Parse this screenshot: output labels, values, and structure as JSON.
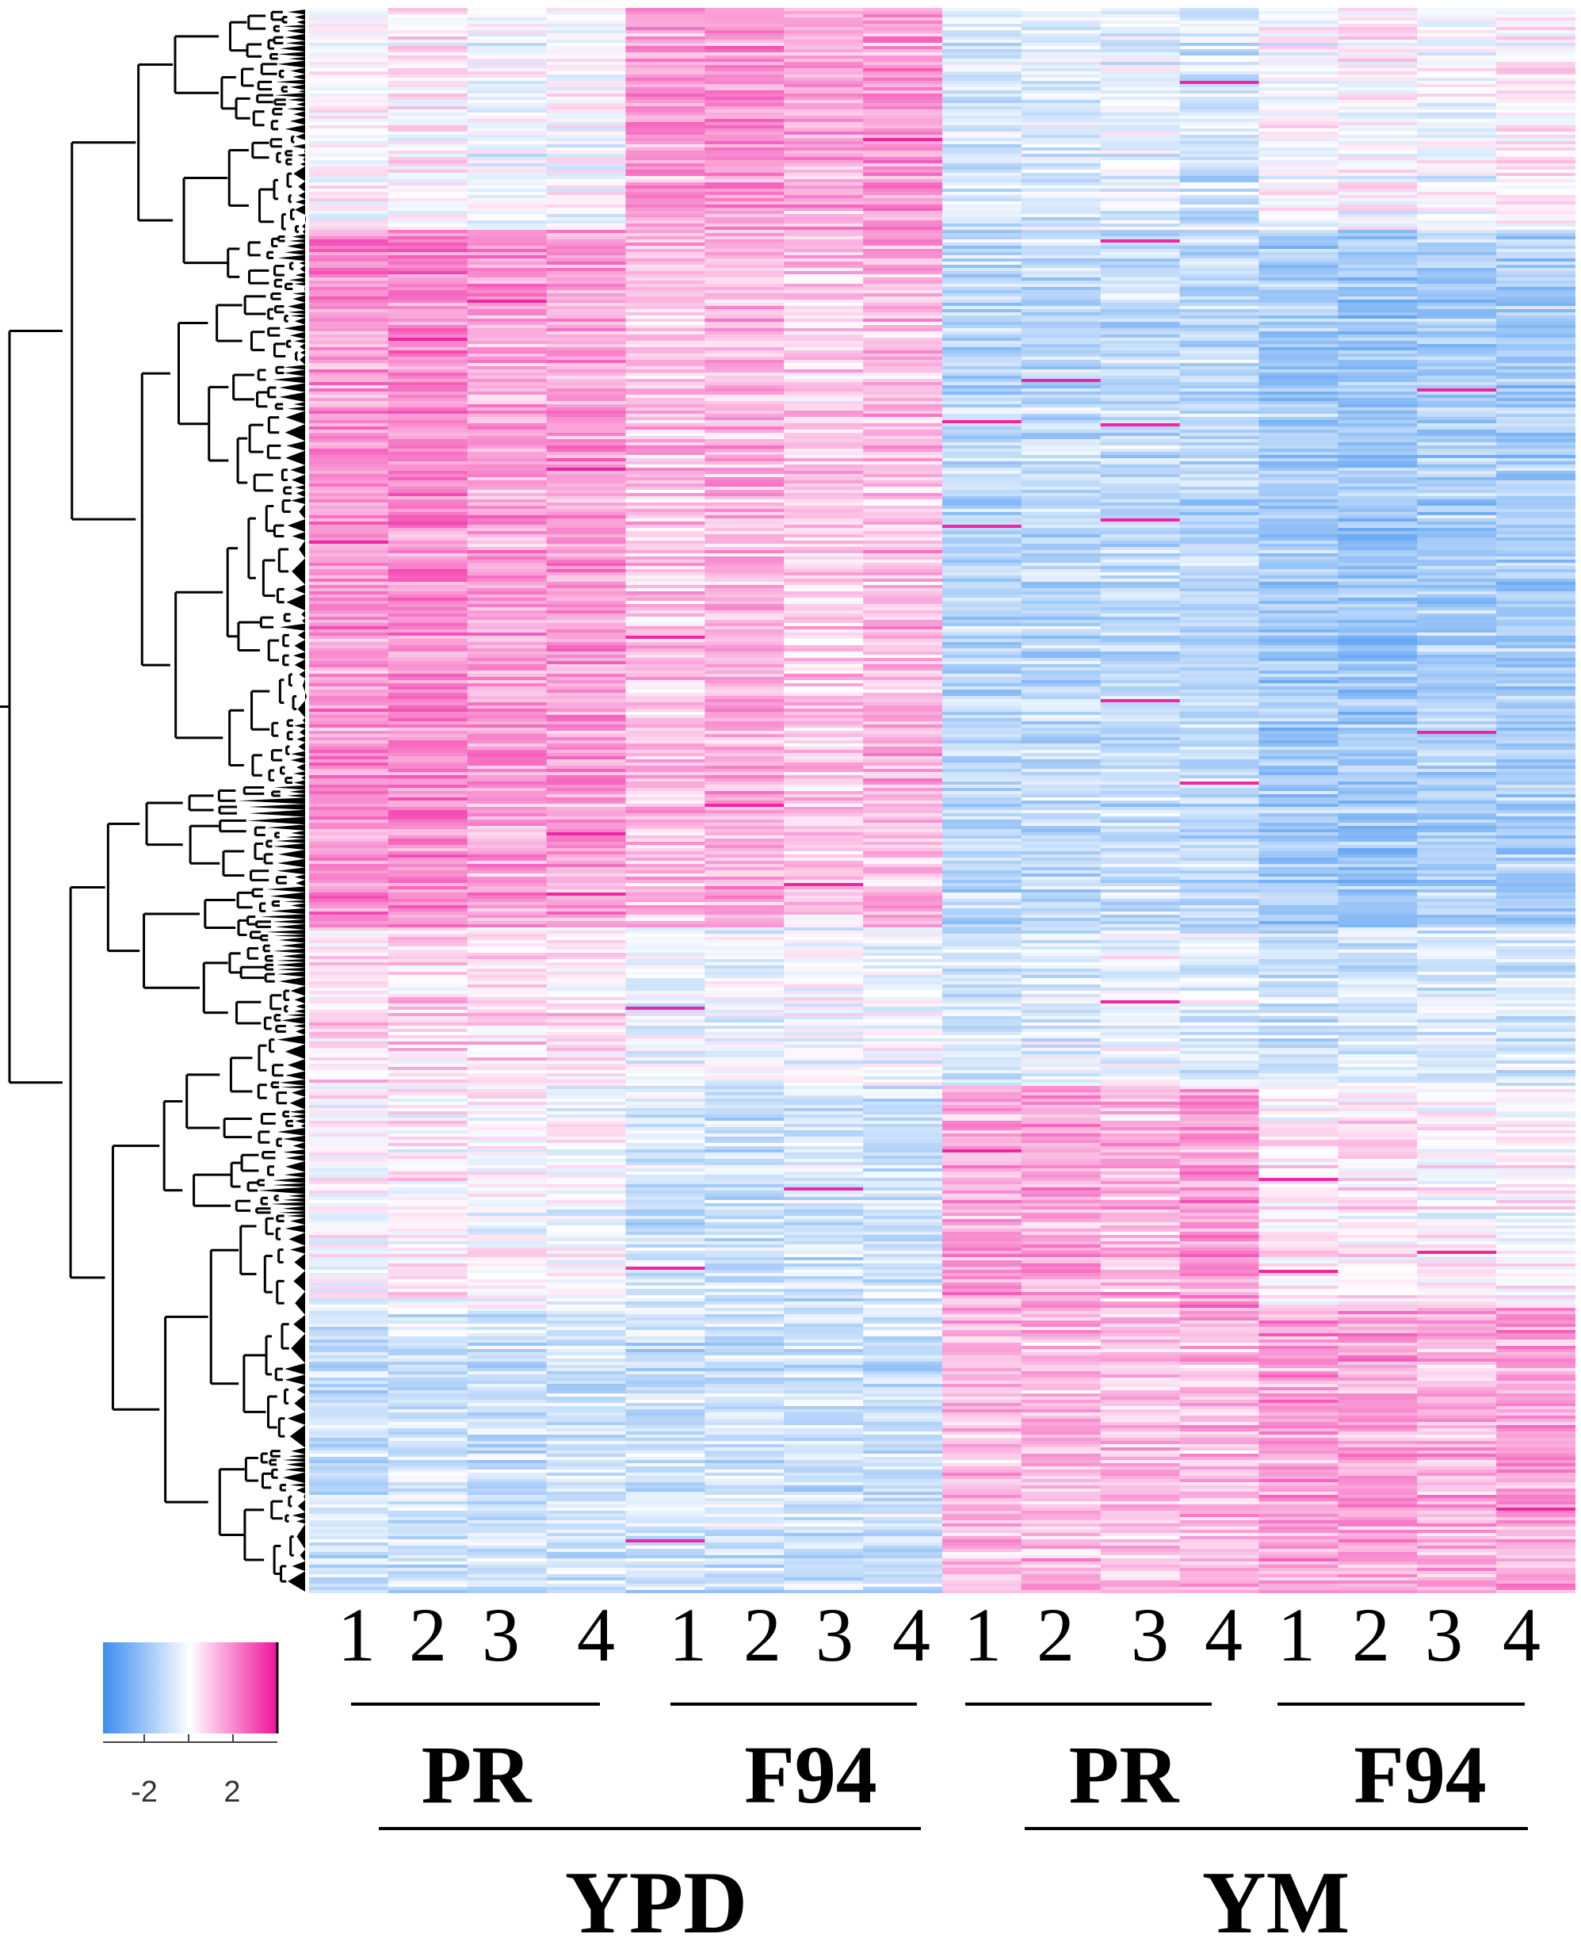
{
  "chart_data": {
    "type": "heatmap",
    "title": "",
    "row_dendrogram": true,
    "columns": [
      {
        "medium": "YPD",
        "strain": "PR",
        "replicate": "1"
      },
      {
        "medium": "YPD",
        "strain": "PR",
        "replicate": "2"
      },
      {
        "medium": "YPD",
        "strain": "PR",
        "replicate": "3"
      },
      {
        "medium": "YPD",
        "strain": "PR",
        "replicate": "4"
      },
      {
        "medium": "YPD",
        "strain": "F94",
        "replicate": "1"
      },
      {
        "medium": "YPD",
        "strain": "F94",
        "replicate": "2"
      },
      {
        "medium": "YPD",
        "strain": "F94",
        "replicate": "3"
      },
      {
        "medium": "YPD",
        "strain": "F94",
        "replicate": "4"
      },
      {
        "medium": "YM",
        "strain": "PR",
        "replicate": "1"
      },
      {
        "medium": "YM",
        "strain": "PR",
        "replicate": "2"
      },
      {
        "medium": "YM",
        "strain": "PR",
        "replicate": "3"
      },
      {
        "medium": "YM",
        "strain": "PR",
        "replicate": "4"
      },
      {
        "medium": "YM",
        "strain": "F94",
        "replicate": "1"
      },
      {
        "medium": "YM",
        "strain": "F94",
        "replicate": "2"
      },
      {
        "medium": "YM",
        "strain": "F94",
        "replicate": "3"
      },
      {
        "medium": "YM",
        "strain": "F94",
        "replicate": "4"
      }
    ],
    "column_labels": [
      "1",
      "2",
      "3",
      "4",
      "1",
      "2",
      "3",
      "4",
      "1",
      "2",
      "3",
      "4",
      "1",
      "2",
      "3",
      "4"
    ],
    "strain_groups": [
      {
        "label": "PR",
        "medium": "YPD"
      },
      {
        "label": "F94",
        "medium": "YPD"
      },
      {
        "label": "PR",
        "medium": "YM"
      },
      {
        "label": "F94",
        "medium": "YM"
      }
    ],
    "medium_groups": [
      {
        "label": "YPD"
      },
      {
        "label": "YM"
      }
    ],
    "cluster_blocks": [
      {
        "name": "cluster-1",
        "row_fraction": 0.14,
        "values": [
          0.0,
          0.1,
          -0.3,
          -0.2,
          1.3,
          1.5,
          1.2,
          1.4,
          -0.8,
          -0.6,
          -0.5,
          -0.9,
          -0.1,
          0.0,
          -0.2,
          0.1
        ]
      },
      {
        "name": "cluster-2",
        "row_fraction": 0.44,
        "values": [
          1.6,
          1.8,
          1.4,
          1.5,
          0.9,
          1.1,
          0.8,
          1.0,
          -1.2,
          -1.1,
          -1.0,
          -1.1,
          -1.6,
          -1.7,
          -1.5,
          -1.5
        ]
      },
      {
        "name": "cluster-3",
        "row_fraction": 0.1,
        "values": [
          0.6,
          0.5,
          0.5,
          0.4,
          -0.2,
          -0.3,
          -0.1,
          -0.2,
          -0.7,
          -0.6,
          -0.3,
          -0.5,
          -0.8,
          -0.7,
          -0.6,
          -0.7
        ]
      },
      {
        "name": "cluster-4",
        "row_fraction": 0.14,
        "values": [
          0.0,
          0.1,
          0.0,
          -0.1,
          -0.8,
          -0.9,
          -0.8,
          -0.9,
          1.3,
          1.4,
          1.1,
          1.5,
          0.2,
          0.3,
          0.1,
          0.0
        ]
      },
      {
        "name": "cluster-5",
        "row_fraction": 0.18,
        "values": [
          -0.9,
          -0.8,
          -0.9,
          -0.8,
          -0.9,
          -0.8,
          -0.9,
          -0.9,
          1.1,
          1.0,
          0.9,
          1.0,
          1.4,
          1.3,
          1.1,
          1.4
        ]
      }
    ],
    "color_scale": {
      "low": "#3b8ef0",
      "mid": "#ffffff",
      "high": "#f0119a",
      "min": -3.5,
      "max": 3.5
    },
    "legend": {
      "tick_labels": [
        "-2",
        "2"
      ],
      "tick_values": [
        -2,
        0,
        2
      ],
      "placement": "bottom-left"
    }
  }
}
